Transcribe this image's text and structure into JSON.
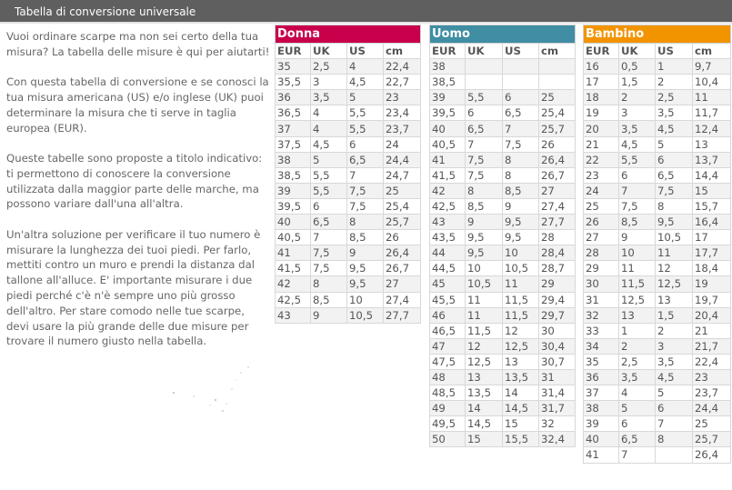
{
  "header": {
    "title": "Tabella di conversione universale"
  },
  "intro": {
    "paragraphs": [
      "Vuoi ordinare scarpe ma non sei certo della tua misura? La tabella delle misure è qui per aiutarti!",
      "Con questa tabella di conversione e se conosci la tua misura americana (US) e/o inglese (UK) puoi determinare la misura che ti serve in taglia europea (EUR).",
      "Queste tabelle sono proposte a titolo indicativo: ti permettono di conoscere la conversione utilizzata dalla maggior parte delle marche, ma possono variare dall'una all'altra.",
      "Un'altra soluzione per verificare il tuo numero è misurare la lunghezza dei tuoi piedi. Per farlo, mettiti contro un muro e prendi la distanza dal tallone all'alluce. E' importante misurare i due piedi perché c'è n'è sempre uno più grosso dell'altro. Per stare comodo nelle tue scarpe, devi usare la più grande delle due misure per trovare il numero giusto nella tabella."
    ]
  },
  "columns": [
    "EUR",
    "UK",
    "US",
    "cm"
  ],
  "colors": {
    "donna": "#c8004c",
    "uomo": "#3f8ea4",
    "bambino": "#f29400",
    "titlebar": "#5f5f5f"
  },
  "tables": [
    {
      "key": "donna",
      "label": "Donna",
      "rows": [
        [
          "35",
          "2,5",
          "4",
          "22,4"
        ],
        [
          "35,5",
          "3",
          "4,5",
          "22,7"
        ],
        [
          "36",
          "3,5",
          "5",
          "23"
        ],
        [
          "36,5",
          "4",
          "5,5",
          "23,4"
        ],
        [
          "37",
          "4",
          "5,5",
          "23,7"
        ],
        [
          "37,5",
          "4,5",
          "6",
          "24"
        ],
        [
          "38",
          "5",
          "6,5",
          "24,4"
        ],
        [
          "38,5",
          "5,5",
          "7",
          "24,7"
        ],
        [
          "39",
          "5,5",
          "7,5",
          "25"
        ],
        [
          "39,5",
          "6",
          "7,5",
          "25,4"
        ],
        [
          "40",
          "6,5",
          "8",
          "25,7"
        ],
        [
          "40,5",
          "7",
          "8,5",
          "26"
        ],
        [
          "41",
          "7,5",
          "9",
          "26,4"
        ],
        [
          "41,5",
          "7,5",
          "9,5",
          "26,7"
        ],
        [
          "42",
          "8",
          "9,5",
          "27"
        ],
        [
          "42,5",
          "8,5",
          "10",
          "27,4"
        ],
        [
          "43",
          "9",
          "10,5",
          "27,7"
        ]
      ]
    },
    {
      "key": "uomo",
      "label": "Uomo",
      "rows": [
        [
          "38",
          "",
          "",
          ""
        ],
        [
          "38,5",
          "",
          "",
          ""
        ],
        [
          "39",
          "5,5",
          "6",
          "25"
        ],
        [
          "39,5",
          "6",
          "6,5",
          "25,4"
        ],
        [
          "40",
          "6,5",
          "7",
          "25,7"
        ],
        [
          "40,5",
          "7",
          "7,5",
          "26"
        ],
        [
          "41",
          "7,5",
          "8",
          "26,4"
        ],
        [
          "41,5",
          "7,5",
          "8",
          "26,7"
        ],
        [
          "42",
          "8",
          "8,5",
          "27"
        ],
        [
          "42,5",
          "8,5",
          "9",
          "27,4"
        ],
        [
          "43",
          "9",
          "9,5",
          "27,7"
        ],
        [
          "43,5",
          "9,5",
          "9,5",
          "28"
        ],
        [
          "44",
          "9,5",
          "10",
          "28,4"
        ],
        [
          "44,5",
          "10",
          "10,5",
          "28,7"
        ],
        [
          "45",
          "10,5",
          "11",
          "29"
        ],
        [
          "45,5",
          "11",
          "11,5",
          "29,4"
        ],
        [
          "46",
          "11",
          "11,5",
          "29,7"
        ],
        [
          "46,5",
          "11,5",
          "12",
          "30"
        ],
        [
          "47",
          "12",
          "12,5",
          "30,4"
        ],
        [
          "47,5",
          "12,5",
          "13",
          "30,7"
        ],
        [
          "48",
          "13",
          "13,5",
          "31"
        ],
        [
          "48,5",
          "13,5",
          "14",
          "31,4"
        ],
        [
          "49",
          "14",
          "14,5",
          "31,7"
        ],
        [
          "49,5",
          "14,5",
          "15",
          "32"
        ],
        [
          "50",
          "15",
          "15,5",
          "32,4"
        ]
      ]
    },
    {
      "key": "bambino",
      "label": "Bambino",
      "rows": [
        [
          "16",
          "0,5",
          "1",
          "9,7"
        ],
        [
          "17",
          "1,5",
          "2",
          "10,4"
        ],
        [
          "18",
          "2",
          "2,5",
          "11"
        ],
        [
          "19",
          "3",
          "3,5",
          "11,7"
        ],
        [
          "20",
          "3,5",
          "4,5",
          "12,4"
        ],
        [
          "21",
          "4,5",
          "5",
          "13"
        ],
        [
          "22",
          "5,5",
          "6",
          "13,7"
        ],
        [
          "23",
          "6",
          "6,5",
          "14,4"
        ],
        [
          "24",
          "7",
          "7,5",
          "15"
        ],
        [
          "25",
          "7,5",
          "8",
          "15,7"
        ],
        [
          "26",
          "8,5",
          "9,5",
          "16,4"
        ],
        [
          "27",
          "9",
          "10,5",
          "17"
        ],
        [
          "28",
          "10",
          "11",
          "17,7"
        ],
        [
          "29",
          "11",
          "12",
          "18,4"
        ],
        [
          "30",
          "11,5",
          "12,5",
          "19"
        ],
        [
          "31",
          "12,5",
          "13",
          "19,7"
        ],
        [
          "32",
          "13",
          "1,5",
          "20,4"
        ],
        [
          "33",
          "1",
          "2",
          "21"
        ],
        [
          "34",
          "2",
          "3",
          "21,7"
        ],
        [
          "35",
          "2,5",
          "3,5",
          "22,4"
        ],
        [
          "36",
          "3,5",
          "4,5",
          "23"
        ],
        [
          "37",
          "4",
          "5",
          "23,7"
        ],
        [
          "38",
          "5",
          "6",
          "24,4"
        ],
        [
          "39",
          "6",
          "7",
          "25"
        ],
        [
          "40",
          "6,5",
          "8",
          "25,7"
        ],
        [
          "41",
          "7",
          "",
          "26,4"
        ]
      ]
    }
  ]
}
